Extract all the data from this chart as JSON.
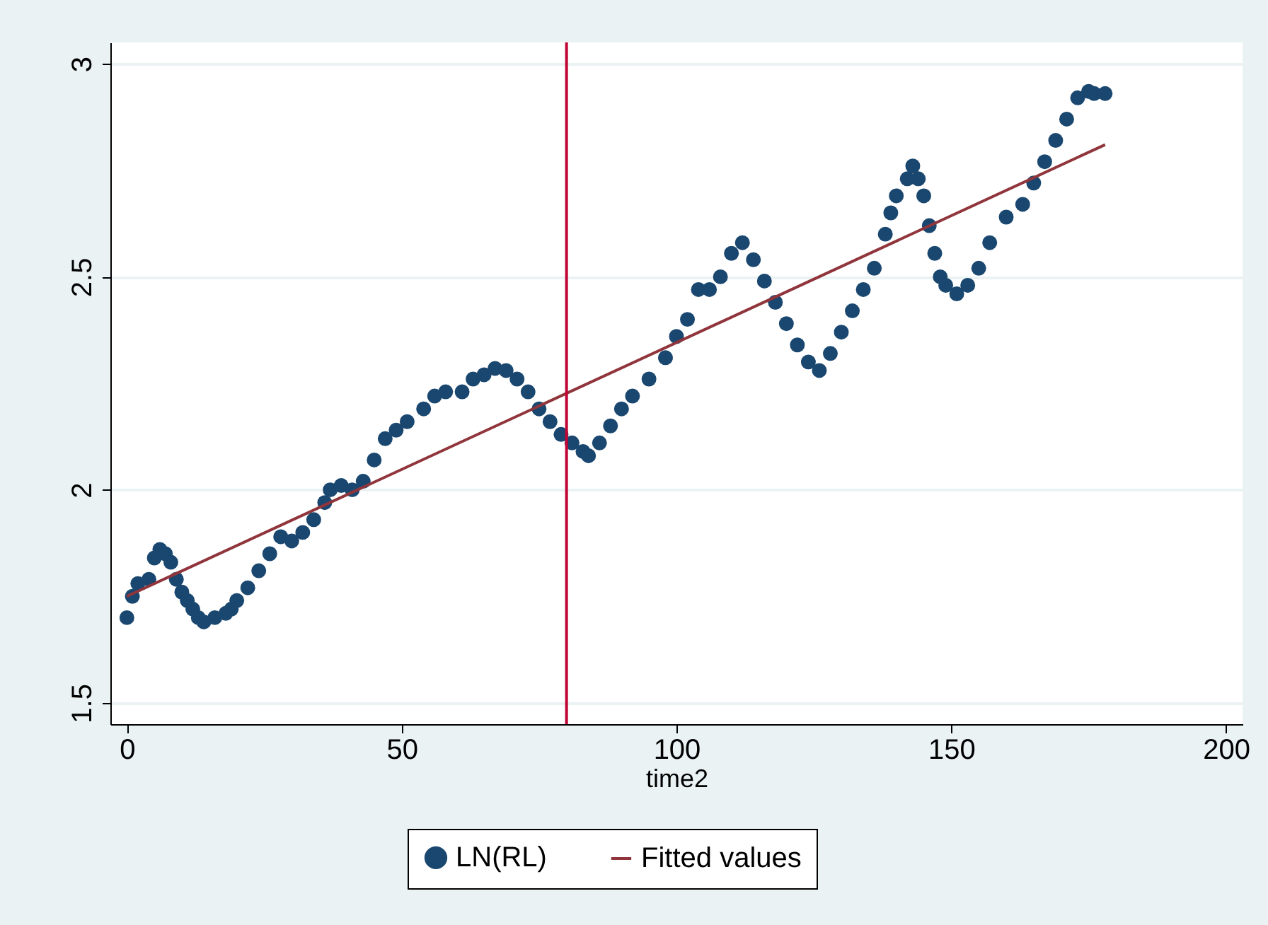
{
  "chart_data": {
    "type": "scatter",
    "xlabel": "time2",
    "xlim": [
      -3,
      203
    ],
    "xticks": [
      0,
      50,
      100,
      150,
      200
    ],
    "ylim": [
      1.45,
      3.05
    ],
    "yticks": [
      1.5,
      {
        "value": 2,
        "label": "2"
      },
      2.5,
      {
        "value": 3,
        "label": "3"
      }
    ],
    "grid": "y",
    "legend": "bottom",
    "ref_lines": [
      {
        "axis": "x",
        "value": 80,
        "color": "#c10534"
      }
    ],
    "series": [
      {
        "name": "LN(RL)",
        "marker": "circle",
        "color": "#1a476f",
        "x": [
          0,
          1,
          2,
          4,
          5,
          6,
          7,
          8,
          9,
          10,
          11,
          12,
          13,
          14,
          16,
          18,
          19,
          20,
          22,
          24,
          26,
          28,
          30,
          32,
          34,
          36,
          37,
          39,
          41,
          43,
          45,
          47,
          49,
          51,
          54,
          56,
          58,
          61,
          63,
          65,
          67,
          69,
          71,
          73,
          75,
          77,
          79,
          81,
          83,
          84,
          86,
          88,
          90,
          92,
          95,
          98,
          100,
          102,
          104,
          106,
          108,
          110,
          112,
          114,
          116,
          118,
          120,
          122,
          124,
          126,
          128,
          130,
          132,
          134,
          136,
          138,
          139,
          140,
          142,
          143,
          144,
          145,
          146,
          147,
          148,
          149,
          151,
          153,
          155,
          157,
          160,
          163,
          165,
          167,
          169,
          171,
          173,
          175,
          176,
          178
        ],
        "values": [
          1.7,
          1.75,
          1.78,
          1.79,
          1.84,
          1.86,
          1.85,
          1.83,
          1.79,
          1.76,
          1.74,
          1.72,
          1.7,
          1.69,
          1.7,
          1.71,
          1.72,
          1.74,
          1.77,
          1.81,
          1.85,
          1.89,
          1.88,
          1.9,
          1.93,
          1.97,
          2.0,
          2.01,
          2.0,
          2.02,
          2.07,
          2.12,
          2.14,
          2.16,
          2.19,
          2.22,
          2.23,
          2.23,
          2.26,
          2.27,
          2.285,
          2.28,
          2.26,
          2.23,
          2.19,
          2.16,
          2.13,
          2.11,
          2.09,
          2.08,
          2.11,
          2.15,
          2.19,
          2.22,
          2.26,
          2.31,
          2.36,
          2.4,
          2.47,
          2.47,
          2.5,
          2.555,
          2.58,
          2.54,
          2.49,
          2.44,
          2.39,
          2.34,
          2.3,
          2.28,
          2.32,
          2.37,
          2.42,
          2.47,
          2.52,
          2.6,
          2.65,
          2.69,
          2.73,
          2.76,
          2.73,
          2.69,
          2.62,
          2.555,
          2.5,
          2.48,
          2.46,
          2.48,
          2.52,
          2.58,
          2.64,
          2.67,
          2.72,
          2.77,
          2.82,
          2.87,
          2.92,
          2.935,
          2.93,
          2.93
        ]
      },
      {
        "name": "Fitted values",
        "type": "line",
        "color": "#90353b",
        "x": [
          0,
          178
        ],
        "values": [
          1.75,
          2.81
        ]
      }
    ]
  }
}
